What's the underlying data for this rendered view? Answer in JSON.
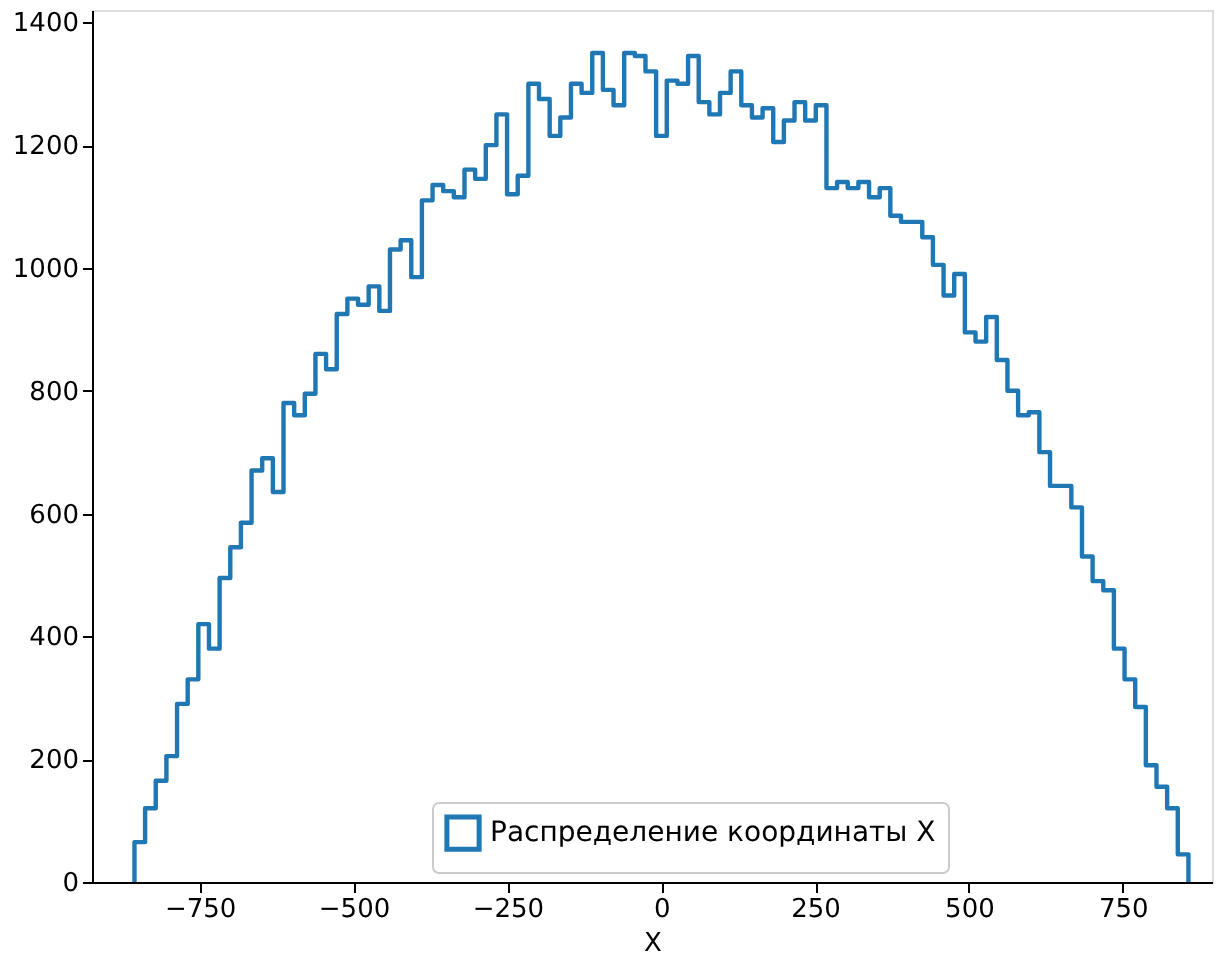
{
  "chart_data": {
    "type": "histogram",
    "xlabel": "X",
    "bins": [
      -856.0,
      -838.7,
      -821.4,
      -804.1,
      -786.8,
      -769.5,
      -752.2,
      -734.9,
      -717.6,
      -700.3,
      -683.0,
      -665.7,
      -648.4,
      -631.1,
      -613.8,
      -596.5,
      -579.2,
      -561.9,
      -544.6,
      -527.3,
      -510.0,
      -492.7,
      -475.4,
      -458.1,
      -440.8,
      -423.5,
      -406.2,
      -388.9,
      -371.6,
      -354.3,
      -337.0,
      -319.7,
      -302.4,
      -285.1,
      -267.8,
      -250.5,
      -233.2,
      -215.9,
      -198.6,
      -181.3,
      -164.0,
      -146.7,
      -129.4,
      -112.1,
      -94.8,
      -77.5,
      -60.2,
      -42.9,
      -25.6,
      -8.3,
      9.0,
      26.3,
      43.6,
      60.9,
      78.2,
      95.5,
      112.8,
      130.1,
      147.4,
      164.7,
      182.0,
      199.3,
      216.6,
      233.9,
      251.2,
      268.5,
      285.8,
      303.1,
      320.4,
      337.7,
      355.0,
      372.3,
      389.6,
      406.9,
      424.2,
      441.5,
      458.8,
      476.1,
      493.4,
      510.7,
      528.0,
      545.3,
      562.6,
      579.9,
      597.2,
      614.5,
      631.8,
      649.1,
      666.4,
      683.7,
      701.0,
      718.3,
      735.6,
      752.9,
      770.2,
      787.5,
      804.8,
      822.1,
      839.4,
      856.7
    ],
    "series": [
      {
        "name": "Распределение координаты X",
        "color": "#1f77b4",
        "values": [
          65,
          120,
          165,
          205,
          290,
          330,
          420,
          380,
          495,
          545,
          585,
          670,
          690,
          635,
          780,
          760,
          795,
          860,
          835,
          925,
          950,
          940,
          970,
          930,
          1030,
          1045,
          985,
          1110,
          1135,
          1125,
          1115,
          1160,
          1145,
          1200,
          1250,
          1120,
          1150,
          1300,
          1275,
          1215,
          1245,
          1300,
          1285,
          1350,
          1290,
          1265,
          1350,
          1345,
          1320,
          1215,
          1305,
          1300,
          1345,
          1270,
          1250,
          1285,
          1320,
          1265,
          1245,
          1260,
          1205,
          1240,
          1270,
          1240,
          1265,
          1130,
          1140,
          1130,
          1140,
          1115,
          1130,
          1085,
          1075,
          1075,
          1050,
          1005,
          955,
          990,
          895,
          880,
          920,
          850,
          800,
          760,
          765,
          700,
          645,
          645,
          610,
          530,
          490,
          475,
          380,
          330,
          285,
          190,
          155,
          120,
          45
        ]
      }
    ],
    "xlim": [
      -925,
      895
    ],
    "ylim": [
      0,
      1420
    ],
    "xticks": [
      -750,
      -500,
      -250,
      0,
      250,
      500,
      750
    ],
    "yticks": [
      0,
      200,
      400,
      600,
      800,
      1000,
      1200,
      1400
    ],
    "grid": false,
    "legend": "bottom"
  }
}
